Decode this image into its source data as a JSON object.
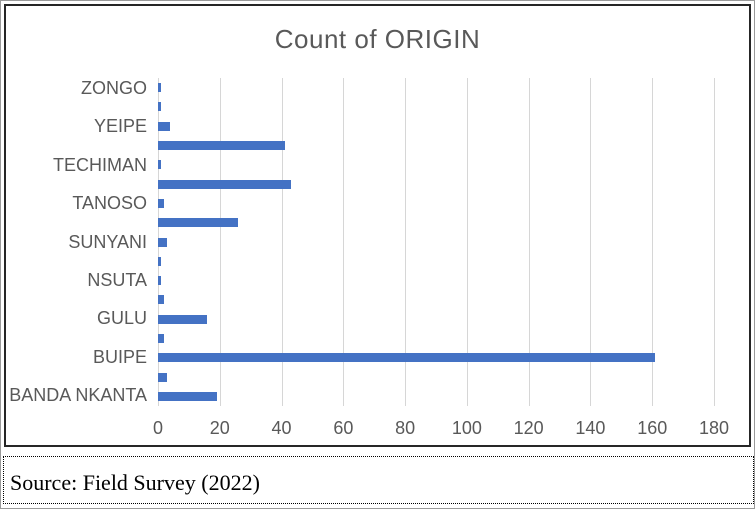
{
  "chart_data": {
    "type": "bar",
    "orientation": "horizontal",
    "title": "Count of ORIGIN",
    "categories": [
      "ZONGO",
      "",
      "YEIPE",
      "",
      "TECHIMAN",
      "",
      "TANOSO",
      "",
      "SUNYANI",
      "",
      "NSUTA",
      "",
      "GULU",
      "",
      "BUIPE",
      "",
      "BANDA NKANTA"
    ],
    "values": [
      1,
      1,
      4,
      41,
      1,
      43,
      2,
      26,
      3,
      1,
      1,
      2,
      16,
      2,
      161,
      3,
      19
    ],
    "xlabel": "",
    "ylabel": "",
    "xlim": [
      0,
      180
    ],
    "x_ticks": [
      0,
      20,
      40,
      60,
      80,
      100,
      120,
      140,
      160,
      180
    ],
    "grid": true,
    "legend_position": "none",
    "bar_color": "#4472C4",
    "gridline_color": "#D6D6D6",
    "text_color": "#595959"
  },
  "footer": {
    "source_text": "Source: Field Survey (2022)"
  }
}
